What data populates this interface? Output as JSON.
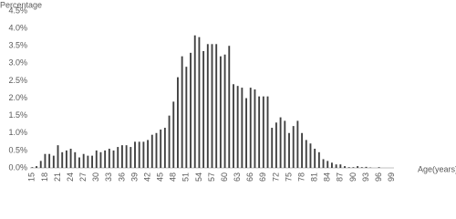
{
  "chart_data": {
    "type": "bar",
    "title": "Percentage",
    "x_label": "Age(years)",
    "color": "#404040",
    "categories": [
      "15",
      null,
      null,
      "18",
      null,
      null,
      "21",
      null,
      null,
      "24",
      null,
      null,
      "27",
      null,
      null,
      "30",
      null,
      null,
      "33",
      null,
      null,
      "36",
      null,
      null,
      "39",
      null,
      null,
      "42",
      null,
      null,
      "45",
      null,
      null,
      "48",
      null,
      null,
      "51",
      null,
      null,
      "54",
      null,
      null,
      "57",
      null,
      null,
      "60",
      null,
      null,
      "63",
      null,
      null,
      "66",
      null,
      null,
      "69",
      null,
      null,
      "72",
      null,
      null,
      "75",
      null,
      null,
      "78",
      null,
      null,
      "81",
      null,
      null,
      "84",
      null,
      null,
      "87",
      null,
      null,
      "90",
      null,
      null,
      "93",
      null,
      null,
      "96",
      null,
      null,
      "99"
    ],
    "values": [
      0.02,
      0.05,
      0.2,
      0.4,
      0.4,
      0.35,
      0.65,
      0.45,
      0.5,
      0.55,
      0.45,
      0.3,
      0.4,
      0.35,
      0.35,
      0.5,
      0.45,
      0.5,
      0.55,
      0.5,
      0.6,
      0.65,
      0.65,
      0.6,
      0.75,
      0.75,
      0.75,
      0.8,
      0.95,
      1.0,
      1.1,
      1.15,
      1.5,
      1.9,
      2.6,
      3.2,
      2.9,
      3.3,
      3.8,
      3.75,
      3.35,
      3.55,
      3.55,
      3.55,
      3.2,
      3.25,
      3.5,
      2.4,
      2.35,
      2.3,
      2.0,
      2.3,
      2.25,
      2.05,
      2.05,
      2.05,
      1.15,
      1.3,
      1.45,
      1.35,
      1.0,
      1.2,
      1.35,
      1.0,
      0.8,
      0.7,
      0.55,
      0.45,
      0.25,
      0.2,
      0.15,
      0.1,
      0.1,
      0.05,
      0.02,
      0.02,
      0.05,
      0.02,
      0.03,
      0.01,
      0,
      0.02,
      0,
      0,
      0
    ],
    "ylim": [
      0,
      4.5
    ],
    "yticks": [
      {
        "value": 0,
        "label": "0.0%"
      },
      {
        "value": 0.5,
        "label": "0.5%"
      },
      {
        "value": 1,
        "label": "1.0%"
      },
      {
        "value": 1.5,
        "label": "1.5%"
      },
      {
        "value": 2,
        "label": "2.0%"
      },
      {
        "value": 2.5,
        "label": "2.5%"
      },
      {
        "value": 3,
        "label": "3.0%"
      },
      {
        "value": 3.5,
        "label": "3.5%"
      },
      {
        "value": 4,
        "label": "4.0%"
      },
      {
        "value": 4.5,
        "label": "4.5%"
      }
    ],
    "grid": false
  }
}
